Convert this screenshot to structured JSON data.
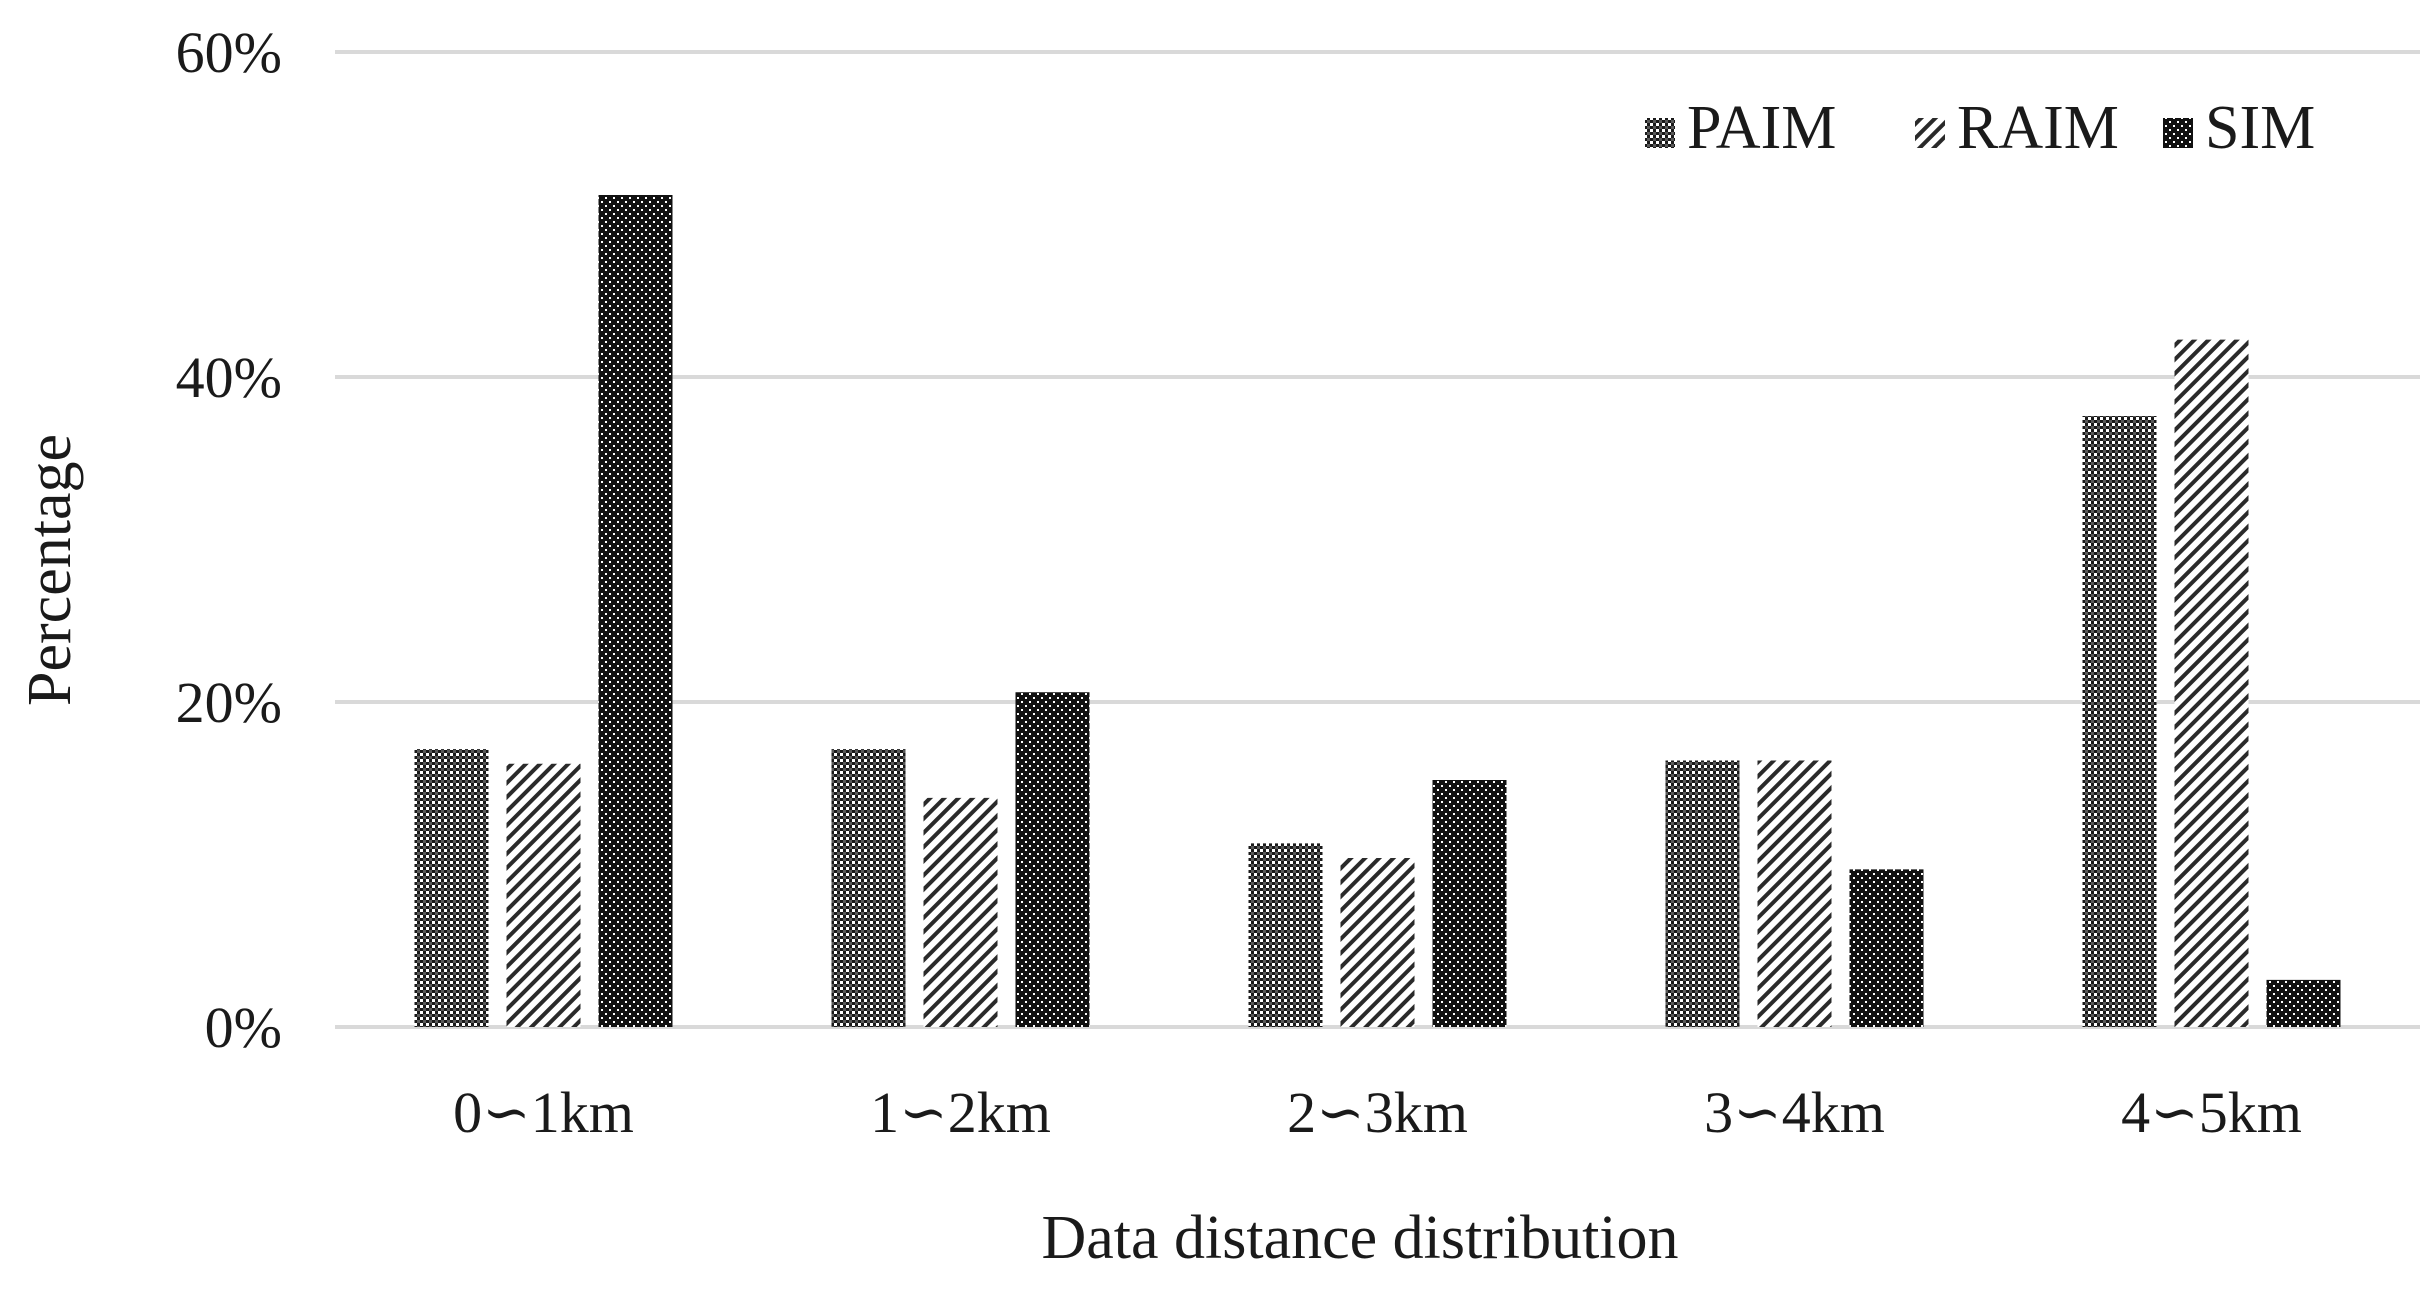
{
  "chart_data": {
    "type": "bar",
    "title": "",
    "xlabel": "Data distance distribution",
    "ylabel": "Percentage",
    "categories": [
      "0∽1km",
      "1∽2km",
      "2∽3km",
      "3∽4km",
      "4∽5km"
    ],
    "series": [
      {
        "name": "PAIM",
        "values": [
          17.1,
          17.1,
          11.3,
          16.4,
          37.6
        ],
        "pattern": "checker"
      },
      {
        "name": "RAIM",
        "values": [
          16.2,
          14.1,
          10.4,
          16.4,
          42.3
        ],
        "pattern": "diagonal"
      },
      {
        "name": "SIM",
        "values": [
          51.2,
          20.6,
          15.2,
          9.7,
          2.9
        ],
        "pattern": "dark-checker"
      }
    ],
    "ylim": [
      0,
      60
    ],
    "yticks": [
      "0%",
      "20%",
      "40%",
      "60%"
    ],
    "ytick_values": [
      0,
      20,
      40,
      60
    ],
    "grid": true,
    "legend_position": "top-right",
    "colors": {
      "ink": "#1a1a1a",
      "grid": "#d9d9d9",
      "background": "#ffffff"
    }
  }
}
